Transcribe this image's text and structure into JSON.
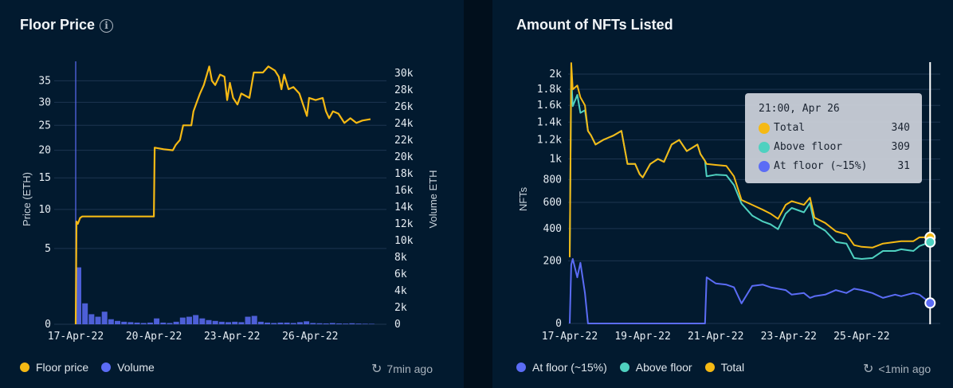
{
  "colors": {
    "floor": "#f5b914",
    "volume": "#5b6cf5",
    "above": "#4fd1c0",
    "atfloor": "#5b6cf5",
    "total": "#f5b914",
    "grid": "#1d3550"
  },
  "left": {
    "title": "Floor Price",
    "info_icon": "info-circle-icon",
    "legend": [
      {
        "label": "Floor price",
        "color": "#f5b914"
      },
      {
        "label": "Volume",
        "color": "#5b6cf5"
      }
    ],
    "updated": "7min ago",
    "updated_icon": "history-icon"
  },
  "right": {
    "title": "Amount of NFTs Listed",
    "legend": [
      {
        "label": "At floor (~15%)",
        "color": "#5b6cf5"
      },
      {
        "label": "Above floor",
        "color": "#4fd1c0"
      },
      {
        "label": "Total",
        "color": "#f5b914"
      }
    ],
    "updated": "<1min ago",
    "updated_icon": "history-icon",
    "tooltip": {
      "time": "21:00, Apr 26",
      "rows": [
        {
          "label": "Total",
          "value": "340",
          "color": "#f5b914"
        },
        {
          "label": "Above floor",
          "value": "309",
          "color": "#4fd1c0"
        },
        {
          "label": "At floor (~15%)",
          "value": "31",
          "color": "#5b6cf5"
        }
      ]
    }
  },
  "chart_data": [
    {
      "type": "line",
      "title": "Floor Price",
      "ylabel": "Price (ETH)",
      "y2label": "Volume ETH",
      "ylim": [
        0,
        38.5
      ],
      "y_scale": "power 0.6",
      "y_ticks": [
        "0",
        "5",
        "10",
        "15",
        "20",
        "25",
        "30",
        "35"
      ],
      "y2lim": [
        0,
        30000
      ],
      "y2_ticks": [
        "0",
        "2k",
        "4k",
        "6k",
        "8k",
        "10k",
        "12k",
        "14k",
        "16k",
        "18k",
        "20k",
        "22k",
        "24k",
        "26k",
        "28k",
        "30k"
      ],
      "x_ticks": [
        {
          "label": "17-Apr-22",
          "date": "2022-04-17T00:00"
        },
        {
          "label": "20-Apr-22",
          "date": "2022-04-20T00:00"
        },
        {
          "label": "23-Apr-22",
          "date": "2022-04-23T00:00"
        },
        {
          "label": "26-Apr-22",
          "date": "2022-04-26T00:00"
        }
      ],
      "grid": true,
      "legend": "bottom-left",
      "series": [
        {
          "name": "Floor price",
          "kind": "line",
          "points": [
            [
              "2022-04-17T00:00",
              0
            ],
            [
              "2022-04-17T00:45",
              8.3
            ],
            [
              "2022-04-17T02:00",
              8.0
            ],
            [
              "2022-04-17T04:00",
              8.8
            ],
            [
              "2022-04-17T06:00",
              9.0
            ],
            [
              "2022-04-20T00:00",
              9.0
            ],
            [
              "2022-04-20T00:45",
              20.5
            ],
            [
              "2022-04-20T09:00",
              20.2
            ],
            [
              "2022-04-20T17:30",
              20.0
            ],
            [
              "2022-04-20T20:00",
              21
            ],
            [
              "2022-04-21T00:00",
              22
            ],
            [
              "2022-04-21T03:00",
              25
            ],
            [
              "2022-04-21T10:30",
              25
            ],
            [
              "2022-04-21T12:30",
              28
            ],
            [
              "2022-04-21T15:30",
              30
            ],
            [
              "2022-04-21T18:30",
              32
            ],
            [
              "2022-04-21T22:00",
              34
            ],
            [
              "2022-04-22T03:00",
              38.5
            ],
            [
              "2022-04-22T05:30",
              35
            ],
            [
              "2022-04-22T08:30",
              34
            ],
            [
              "2022-04-22T13:00",
              36.5
            ],
            [
              "2022-04-22T17:00",
              36
            ],
            [
              "2022-04-22T19:30",
              30.5
            ],
            [
              "2022-04-22T22:00",
              34.5
            ],
            [
              "2022-04-23T01:00",
              31
            ],
            [
              "2022-04-23T05:00",
              29.5
            ],
            [
              "2022-04-23T08:30",
              32
            ],
            [
              "2022-04-23T16:00",
              31
            ],
            [
              "2022-04-23T20:00",
              37
            ],
            [
              "2022-04-24T04:30",
              37
            ],
            [
              "2022-04-24T09:30",
              38.5
            ],
            [
              "2022-04-24T15:30",
              37.5
            ],
            [
              "2022-04-24T19:00",
              36
            ],
            [
              "2022-04-24T21:30",
              33
            ],
            [
              "2022-04-25T00:00",
              36.5
            ],
            [
              "2022-04-25T04:00",
              33
            ],
            [
              "2022-04-25T08:30",
              33.5
            ],
            [
              "2022-04-25T14:00",
              32
            ],
            [
              "2022-04-25T21:00",
              27
            ],
            [
              "2022-04-25T23:00",
              31
            ],
            [
              "2022-04-26T05:00",
              30.5
            ],
            [
              "2022-04-26T11:30",
              31
            ],
            [
              "2022-04-26T14:30",
              28
            ],
            [
              "2022-04-26T17:30",
              26.5
            ],
            [
              "2022-04-26T21:00",
              28
            ],
            [
              "2022-04-27T02:00",
              27.5
            ],
            [
              "2022-04-27T07:30",
              25.5
            ],
            [
              "2022-04-27T13:00",
              26.5
            ],
            [
              "2022-04-27T18:30",
              25.5
            ],
            [
              "2022-04-28T00:00",
              26
            ],
            [
              "2022-04-28T07:30",
              26.3
            ]
          ]
        },
        {
          "name": "Volume",
          "kind": "bar",
          "axis": "right",
          "points": [
            [
              "2022-04-17T00:00",
              6800
            ],
            [
              "2022-04-17T06:00",
              2500
            ],
            [
              "2022-04-17T12:00",
              1200
            ],
            [
              "2022-04-17T18:00",
              900
            ],
            [
              "2022-04-18T00:00",
              1500
            ],
            [
              "2022-04-18T06:00",
              600
            ],
            [
              "2022-04-18T12:00",
              400
            ],
            [
              "2022-04-18T18:00",
              300
            ],
            [
              "2022-04-19T00:00",
              250
            ],
            [
              "2022-04-19T06:00",
              200
            ],
            [
              "2022-04-19T12:00",
              150
            ],
            [
              "2022-04-19T18:00",
              200
            ],
            [
              "2022-04-20T00:00",
              700
            ],
            [
              "2022-04-20T06:00",
              200
            ],
            [
              "2022-04-20T12:00",
              150
            ],
            [
              "2022-04-20T18:00",
              300
            ],
            [
              "2022-04-21T00:00",
              800
            ],
            [
              "2022-04-21T06:00",
              900
            ],
            [
              "2022-04-21T12:00",
              1100
            ],
            [
              "2022-04-21T18:00",
              700
            ],
            [
              "2022-04-22T00:00",
              500
            ],
            [
              "2022-04-22T06:00",
              400
            ],
            [
              "2022-04-22T12:00",
              300
            ],
            [
              "2022-04-22T18:00",
              250
            ],
            [
              "2022-04-23T00:00",
              300
            ],
            [
              "2022-04-23T06:00",
              250
            ],
            [
              "2022-04-23T12:00",
              900
            ],
            [
              "2022-04-23T18:00",
              1000
            ],
            [
              "2022-04-24T00:00",
              300
            ],
            [
              "2022-04-24T06:00",
              200
            ],
            [
              "2022-04-24T12:00",
              150
            ],
            [
              "2022-04-24T18:00",
              200
            ],
            [
              "2022-04-25T00:00",
              200
            ],
            [
              "2022-04-25T06:00",
              150
            ],
            [
              "2022-04-25T12:00",
              250
            ],
            [
              "2022-04-25T18:00",
              350
            ],
            [
              "2022-04-26T00:00",
              150
            ],
            [
              "2022-04-26T06:00",
              120
            ],
            [
              "2022-04-26T12:00",
              100
            ],
            [
              "2022-04-26T18:00",
              150
            ],
            [
              "2022-04-27T00:00",
              100
            ],
            [
              "2022-04-27T06:00",
              80
            ],
            [
              "2022-04-27T12:00",
              120
            ],
            [
              "2022-04-27T18:00",
              80
            ],
            [
              "2022-04-28T00:00",
              60
            ],
            [
              "2022-04-28T06:00",
              50
            ]
          ]
        }
      ]
    },
    {
      "type": "line",
      "title": "Amount of NFTs Listed",
      "ylabel": "NFTs",
      "ylim": [
        0,
        2150
      ],
      "y_scale": "power 0.6",
      "y_ticks": [
        {
          "label": "0",
          "v": 0
        },
        {
          "label": "200",
          "v": 200
        },
        {
          "label": "400",
          "v": 400
        },
        {
          "label": "600",
          "v": 600
        },
        {
          "label": "800",
          "v": 800
        },
        {
          "label": "1k",
          "v": 1000
        },
        {
          "label": "1.2k",
          "v": 1200
        },
        {
          "label": "1.4k",
          "v": 1400
        },
        {
          "label": "1.6k",
          "v": 1600
        },
        {
          "label": "1.8k",
          "v": 1800
        },
        {
          "label": "2k",
          "v": 2000
        }
      ],
      "x_ticks": [
        {
          "label": "17-Apr-22",
          "date": "2022-04-17T00:00"
        },
        {
          "label": "19-Apr-22",
          "date": "2022-04-19T00:00"
        },
        {
          "label": "21-Apr-22",
          "date": "2022-04-21T00:00"
        },
        {
          "label": "23-Apr-22",
          "date": "2022-04-23T00:00"
        },
        {
          "label": "25-Apr-22",
          "date": "2022-04-25T00:00"
        }
      ],
      "grid": true,
      "legend": "bottom-left",
      "hover": "2022-04-26T21:00",
      "x": [
        "2022-04-17T00:00",
        "2022-04-17T01:00",
        "2022-04-17T02:00",
        "2022-04-17T05:00",
        "2022-04-17T07:00",
        "2022-04-17T10:00",
        "2022-04-17T12:00",
        "2022-04-17T14:00",
        "2022-04-17T17:00",
        "2022-04-17T22:00",
        "2022-04-18T05:00",
        "2022-04-18T10:00",
        "2022-04-18T14:00",
        "2022-04-18T19:00",
        "2022-04-18T22:00",
        "2022-04-19T00:00",
        "2022-04-19T05:00",
        "2022-04-19T10:00",
        "2022-04-19T14:00",
        "2022-04-19T19:00",
        "2022-04-20T00:00",
        "2022-04-20T05:00",
        "2022-04-20T12:00",
        "2022-04-20T14:00",
        "2022-04-20T17:00",
        "2022-04-20T18:00",
        "2022-04-21T00:00",
        "2022-04-21T07:00",
        "2022-04-21T12:00",
        "2022-04-21T17:00",
        "2022-04-22T00:00",
        "2022-04-22T07:00",
        "2022-04-22T12:00",
        "2022-04-22T17:00",
        "2022-04-22T22:00",
        "2022-04-23T02:00",
        "2022-04-23T10:00",
        "2022-04-23T14:00",
        "2022-04-23T17:00",
        "2022-04-24T00:00",
        "2022-04-24T07:00",
        "2022-04-24T14:00",
        "2022-04-24T19:00",
        "2022-04-25T00:00",
        "2022-04-25T07:00",
        "2022-04-25T14:00",
        "2022-04-25T22:00",
        "2022-04-26T02:00",
        "2022-04-26T10:00",
        "2022-04-26T14:00",
        "2022-04-26T21:00"
      ],
      "series": [
        {
          "name": "Total",
          "color": "#f5b914",
          "values": [
            220,
            2150,
            1800,
            1850,
            1700,
            1600,
            1300,
            1250,
            1150,
            1200,
            1250,
            1300,
            950,
            950,
            850,
            820,
            950,
            1000,
            970,
            1150,
            1200,
            1080,
            1150,
            1050,
            980,
            950,
            940,
            930,
            830,
            620,
            580,
            540,
            510,
            470,
            580,
            610,
            580,
            640,
            480,
            440,
            380,
            360,
            290,
            280,
            275,
            300,
            310,
            315,
            315,
            340,
            340
          ]
        },
        {
          "name": "Above floor",
          "color": "#4fd1c0",
          "values": [
            220,
            1970,
            1590,
            1730,
            1510,
            1540,
            1300,
            1250,
            1150,
            1200,
            1250,
            1300,
            950,
            950,
            850,
            820,
            950,
            1000,
            970,
            1150,
            1200,
            1080,
            1150,
            1050,
            980,
            830,
            845,
            840,
            750,
            590,
            495,
            450,
            430,
            395,
            510,
            555,
            520,
            595,
            430,
            385,
            310,
            300,
            215,
            210,
            215,
            255,
            255,
            265,
            255,
            285,
            309
          ]
        },
        {
          "name": "At floor (~15%)",
          "color": "#5b6cf5",
          "values": [
            0,
            180,
            210,
            120,
            190,
            60,
            0,
            0,
            0,
            0,
            0,
            0,
            0,
            0,
            0,
            0,
            0,
            0,
            0,
            0,
            0,
            0,
            0,
            0,
            0,
            120,
            95,
            90,
            80,
            30,
            85,
            90,
            80,
            75,
            70,
            55,
            60,
            45,
            50,
            55,
            70,
            60,
            75,
            70,
            60,
            45,
            55,
            50,
            60,
            55,
            31
          ]
        }
      ]
    }
  ]
}
